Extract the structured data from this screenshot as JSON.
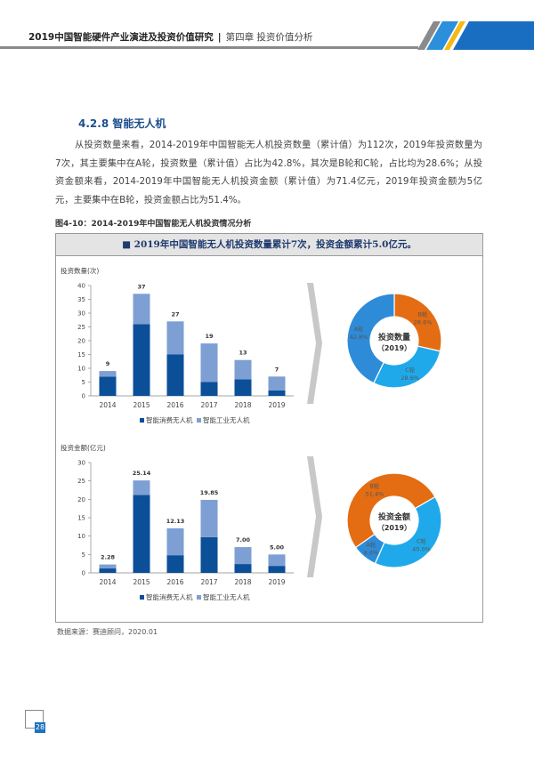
{
  "header": {
    "title": "2019中国智能硬件产业演进及投资价值研究",
    "separator": "|",
    "chapter": "第四章 投资价值分析"
  },
  "section": {
    "title": "4.2.8 智能无人机",
    "paragraph": "从投资数量来看，2014-2019年中国智能无人机投资数量（累计值）为112次，2019年投资数量为7次，其主要集中在A轮，投资数量（累计值）占比为42.8%，其次是B轮和C轮，占比均为28.6%；从投资金额来看，2014-2019年中国智能无人机投资金额（累计值）为71.4亿元，2019年投资金额为5亿元，主要集中在B轮，投资金额占比为51.4%。"
  },
  "figure": {
    "caption": "图4-10：2014-2019年中国智能无人机投资情况分析",
    "headline": "■ 2019年中国智能无人机投资数量累计7次，投资金额累计5.0亿元。"
  },
  "source": "数据来源：赛迪顾问，2020.01",
  "page_number": "28",
  "colors": {
    "consumer": "#0b4f98",
    "industrial": "#7d9fd3",
    "round_a": "#2e8bd8",
    "round_b": "#e46c12",
    "round_c": "#1fa9ea",
    "accent": "#1a73c0"
  },
  "chart_data": [
    {
      "type": "bar",
      "stacked": true,
      "ylabel": "投资数量(次)",
      "ylim": [
        0,
        40
      ],
      "yticks": [
        0,
        5,
        10,
        15,
        20,
        25,
        30,
        35,
        40
      ],
      "categories": [
        "2014",
        "2015",
        "2016",
        "2017",
        "2018",
        "2019"
      ],
      "series": [
        {
          "name": "智能消费无人机",
          "values": [
            7,
            26,
            15,
            5,
            6,
            2
          ]
        },
        {
          "name": "智能工业无人机",
          "values": [
            2,
            11,
            12,
            14,
            7,
            5
          ]
        }
      ],
      "totals": [
        "9",
        "37",
        "27",
        "19",
        "13",
        "7"
      ],
      "legend": "bottom"
    },
    {
      "type": "bar",
      "stacked": true,
      "ylabel": "投资金额(亿元)",
      "ylim": [
        0,
        30
      ],
      "yticks": [
        0,
        5,
        10,
        15,
        20,
        25,
        30
      ],
      "categories": [
        "2014",
        "2015",
        "2016",
        "2017",
        "2018",
        "2019"
      ],
      "series": [
        {
          "name": "智能消费无人机",
          "values": [
            1.2,
            21.2,
            4.8,
            9.7,
            2.4,
            1.9
          ]
        },
        {
          "name": "智能工业无人机",
          "values": [
            1.08,
            3.94,
            7.33,
            10.15,
            4.6,
            3.1
          ]
        }
      ],
      "totals": [
        "2.28",
        "25.14",
        "12.13",
        "19.85",
        "7.00",
        "5.00"
      ],
      "legend": "bottom"
    },
    {
      "type": "pie",
      "donut": true,
      "center_label": [
        "投资数量",
        "（2019）"
      ],
      "slices": [
        {
          "label": "B轮",
          "value": 28.6,
          "text": "28.6%"
        },
        {
          "label": "C轮",
          "value": 28.6,
          "text": "28.6%"
        },
        {
          "label": "A轮",
          "value": 42.8,
          "text": "42.8%"
        }
      ]
    },
    {
      "type": "pie",
      "donut": true,
      "center_label": [
        "投资金额",
        "（2019）"
      ],
      "slices": [
        {
          "label": "C轮",
          "value": 40.0,
          "text": "40.0%"
        },
        {
          "label": "A轮",
          "value": 8.6,
          "text": "8.6%"
        },
        {
          "label": "B轮",
          "value": 51.4,
          "text": "51.4%"
        }
      ]
    }
  ]
}
